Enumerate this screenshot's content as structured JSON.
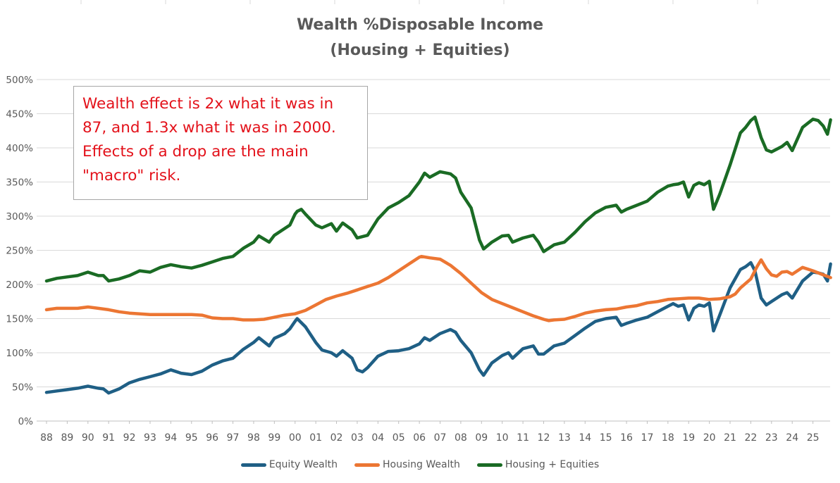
{
  "chart_data": {
    "type": "line",
    "title_line1": "Wealth %Disposable Income",
    "title_line2": "(Housing + Equities)",
    "annotation": [
      "Wealth effect is 2x what it was in",
      "87, and 1.3x what it was in 2000.",
      "Effects of a drop are the main",
      "\"macro\" risk."
    ],
    "xlabel": "",
    "ylabel": "",
    "ylim": [
      0,
      500
    ],
    "y_ticks": [
      "0%",
      "50%",
      "100%",
      "150%",
      "200%",
      "250%",
      "300%",
      "350%",
      "400%",
      "450%",
      "500%"
    ],
    "x_ticks": [
      "88",
      "89",
      "90",
      "91",
      "92",
      "93",
      "94",
      "95",
      "96",
      "97",
      "98",
      "99",
      "00",
      "01",
      "02",
      "03",
      "04",
      "05",
      "06",
      "07",
      "08",
      "09",
      "10",
      "11",
      "12",
      "13",
      "14",
      "15",
      "16",
      "17",
      "18",
      "19",
      "20",
      "21",
      "22",
      "23",
      "24",
      "25"
    ],
    "grid": true,
    "legend_position": "bottom",
    "colors": {
      "equity": "#1f5f85",
      "housing": "#ec7633",
      "total": "#1a6b24",
      "grid": "#d9d9d9",
      "annotation_text": "#e3111a"
    },
    "series": [
      {
        "name": "Equity Wealth",
        "color": "#1f5f85",
        "points": [
          [
            1988.0,
            42
          ],
          [
            1988.5,
            44
          ],
          [
            1989.0,
            46
          ],
          [
            1989.5,
            48
          ],
          [
            1990.0,
            51
          ],
          [
            1990.5,
            48
          ],
          [
            1990.75,
            47
          ],
          [
            1991.0,
            41
          ],
          [
            1991.5,
            47
          ],
          [
            1992.0,
            56
          ],
          [
            1992.5,
            61
          ],
          [
            1993.0,
            65
          ],
          [
            1993.5,
            69
          ],
          [
            1994.0,
            75
          ],
          [
            1994.5,
            70
          ],
          [
            1995.0,
            68
          ],
          [
            1995.5,
            73
          ],
          [
            1996.0,
            82
          ],
          [
            1996.5,
            88
          ],
          [
            1997.0,
            92
          ],
          [
            1997.5,
            105
          ],
          [
            1998.0,
            115
          ],
          [
            1998.25,
            122
          ],
          [
            1998.75,
            110
          ],
          [
            1999.0,
            121
          ],
          [
            1999.5,
            128
          ],
          [
            1999.75,
            135
          ],
          [
            2000.0,
            146
          ],
          [
            2000.1,
            150
          ],
          [
            2000.5,
            138
          ],
          [
            2001.0,
            115
          ],
          [
            2001.3,
            104
          ],
          [
            2001.75,
            100
          ],
          [
            2002.0,
            95
          ],
          [
            2002.3,
            103
          ],
          [
            2002.75,
            92
          ],
          [
            2003.0,
            75
          ],
          [
            2003.25,
            72
          ],
          [
            2003.5,
            78
          ],
          [
            2004.0,
            95
          ],
          [
            2004.5,
            102
          ],
          [
            2005.0,
            103
          ],
          [
            2005.5,
            106
          ],
          [
            2006.0,
            113
          ],
          [
            2006.25,
            122
          ],
          [
            2006.5,
            118
          ],
          [
            2007.0,
            128
          ],
          [
            2007.5,
            134
          ],
          [
            2007.75,
            130
          ],
          [
            2008.0,
            118
          ],
          [
            2008.5,
            100
          ],
          [
            2008.9,
            75
          ],
          [
            2009.1,
            67
          ],
          [
            2009.5,
            85
          ],
          [
            2010.0,
            96
          ],
          [
            2010.3,
            100
          ],
          [
            2010.5,
            92
          ],
          [
            2011.0,
            106
          ],
          [
            2011.5,
            110
          ],
          [
            2011.75,
            98
          ],
          [
            2012.0,
            98
          ],
          [
            2012.5,
            110
          ],
          [
            2013.0,
            114
          ],
          [
            2013.5,
            125
          ],
          [
            2014.0,
            136
          ],
          [
            2014.5,
            146
          ],
          [
            2015.0,
            150
          ],
          [
            2015.5,
            152
          ],
          [
            2015.75,
            140
          ],
          [
            2016.0,
            143
          ],
          [
            2016.5,
            148
          ],
          [
            2017.0,
            152
          ],
          [
            2017.5,
            160
          ],
          [
            2018.0,
            168
          ],
          [
            2018.25,
            172
          ],
          [
            2018.5,
            168
          ],
          [
            2018.75,
            170
          ],
          [
            2019.0,
            148
          ],
          [
            2019.25,
            165
          ],
          [
            2019.5,
            170
          ],
          [
            2019.75,
            168
          ],
          [
            2020.0,
            173
          ],
          [
            2020.2,
            132
          ],
          [
            2020.5,
            155
          ],
          [
            2021.0,
            195
          ],
          [
            2021.5,
            222
          ],
          [
            2021.75,
            226
          ],
          [
            2022.0,
            232
          ],
          [
            2022.2,
            220
          ],
          [
            2022.5,
            180
          ],
          [
            2022.75,
            170
          ],
          [
            2023.0,
            175
          ],
          [
            2023.5,
            185
          ],
          [
            2023.75,
            188
          ],
          [
            2024.0,
            180
          ],
          [
            2024.5,
            205
          ],
          [
            2025.0,
            218
          ],
          [
            2025.25,
            217
          ],
          [
            2025.5,
            215
          ],
          [
            2025.7,
            205
          ],
          [
            2025.85,
            230
          ]
        ]
      },
      {
        "name": "Housing Wealth",
        "color": "#ec7633",
        "points": [
          [
            1988.0,
            163
          ],
          [
            1988.5,
            165
          ],
          [
            1989.0,
            165
          ],
          [
            1989.5,
            165
          ],
          [
            1990.0,
            167
          ],
          [
            1990.5,
            165
          ],
          [
            1991.0,
            163
          ],
          [
            1991.5,
            160
          ],
          [
            1992.0,
            158
          ],
          [
            1992.5,
            157
          ],
          [
            1993.0,
            156
          ],
          [
            1993.5,
            156
          ],
          [
            1994.0,
            156
          ],
          [
            1994.5,
            156
          ],
          [
            1995.0,
            156
          ],
          [
            1995.5,
            155
          ],
          [
            1996.0,
            151
          ],
          [
            1996.5,
            150
          ],
          [
            1997.0,
            150
          ],
          [
            1997.5,
            148
          ],
          [
            1998.0,
            148
          ],
          [
            1998.5,
            149
          ],
          [
            1999.0,
            152
          ],
          [
            1999.5,
            155
          ],
          [
            2000.0,
            157
          ],
          [
            2000.5,
            162
          ],
          [
            2001.0,
            170
          ],
          [
            2001.5,
            178
          ],
          [
            2002.0,
            183
          ],
          [
            2002.5,
            187
          ],
          [
            2003.0,
            192
          ],
          [
            2003.5,
            197
          ],
          [
            2004.0,
            202
          ],
          [
            2004.5,
            210
          ],
          [
            2005.0,
            220
          ],
          [
            2005.5,
            230
          ],
          [
            2006.0,
            240
          ],
          [
            2006.1,
            241
          ],
          [
            2006.5,
            239
          ],
          [
            2007.0,
            237
          ],
          [
            2007.5,
            228
          ],
          [
            2008.0,
            216
          ],
          [
            2008.5,
            202
          ],
          [
            2009.0,
            188
          ],
          [
            2009.5,
            178
          ],
          [
            2010.0,
            172
          ],
          [
            2010.5,
            166
          ],
          [
            2011.0,
            160
          ],
          [
            2011.5,
            154
          ],
          [
            2012.0,
            149
          ],
          [
            2012.25,
            147
          ],
          [
            2012.5,
            148
          ],
          [
            2013.0,
            149
          ],
          [
            2013.5,
            153
          ],
          [
            2014.0,
            158
          ],
          [
            2014.5,
            161
          ],
          [
            2015.0,
            163
          ],
          [
            2015.5,
            164
          ],
          [
            2016.0,
            167
          ],
          [
            2016.5,
            169
          ],
          [
            2017.0,
            173
          ],
          [
            2017.5,
            175
          ],
          [
            2018.0,
            178
          ],
          [
            2018.5,
            179
          ],
          [
            2019.0,
            180
          ],
          [
            2019.5,
            180
          ],
          [
            2020.0,
            178
          ],
          [
            2020.5,
            179
          ],
          [
            2021.0,
            182
          ],
          [
            2021.25,
            186
          ],
          [
            2021.5,
            195
          ],
          [
            2022.0,
            208
          ],
          [
            2022.3,
            226
          ],
          [
            2022.5,
            236
          ],
          [
            2022.75,
            223
          ],
          [
            2023.0,
            214
          ],
          [
            2023.25,
            212
          ],
          [
            2023.5,
            218
          ],
          [
            2023.75,
            219
          ],
          [
            2024.0,
            215
          ],
          [
            2024.5,
            225
          ],
          [
            2025.0,
            220
          ],
          [
            2025.5,
            214
          ],
          [
            2025.85,
            210
          ]
        ]
      },
      {
        "name": "Housing + Equities",
        "color": "#1a6b24",
        "points": [
          [
            1988.0,
            205
          ],
          [
            1988.5,
            209
          ],
          [
            1989.0,
            211
          ],
          [
            1989.5,
            213
          ],
          [
            1990.0,
            218
          ],
          [
            1990.5,
            213
          ],
          [
            1990.75,
            213
          ],
          [
            1991.0,
            205
          ],
          [
            1991.5,
            208
          ],
          [
            1992.0,
            213
          ],
          [
            1992.5,
            220
          ],
          [
            1993.0,
            218
          ],
          [
            1993.5,
            225
          ],
          [
            1994.0,
            229
          ],
          [
            1994.5,
            226
          ],
          [
            1995.0,
            224
          ],
          [
            1995.5,
            228
          ],
          [
            1996.0,
            233
          ],
          [
            1996.5,
            238
          ],
          [
            1997.0,
            241
          ],
          [
            1997.5,
            253
          ],
          [
            1998.0,
            262
          ],
          [
            1998.25,
            271
          ],
          [
            1998.75,
            262
          ],
          [
            1999.0,
            272
          ],
          [
            1999.5,
            282
          ],
          [
            1999.75,
            287
          ],
          [
            2000.0,
            303
          ],
          [
            2000.1,
            307
          ],
          [
            2000.3,
            310
          ],
          [
            2000.5,
            303
          ],
          [
            2001.0,
            287
          ],
          [
            2001.3,
            283
          ],
          [
            2001.75,
            289
          ],
          [
            2002.0,
            278
          ],
          [
            2002.3,
            290
          ],
          [
            2002.75,
            280
          ],
          [
            2003.0,
            268
          ],
          [
            2003.25,
            270
          ],
          [
            2003.5,
            272
          ],
          [
            2004.0,
            296
          ],
          [
            2004.5,
            312
          ],
          [
            2005.0,
            320
          ],
          [
            2005.5,
            330
          ],
          [
            2006.0,
            350
          ],
          [
            2006.25,
            363
          ],
          [
            2006.5,
            357
          ],
          [
            2007.0,
            365
          ],
          [
            2007.5,
            362
          ],
          [
            2007.75,
            356
          ],
          [
            2008.0,
            335
          ],
          [
            2008.5,
            312
          ],
          [
            2008.9,
            265
          ],
          [
            2009.1,
            252
          ],
          [
            2009.5,
            262
          ],
          [
            2010.0,
            271
          ],
          [
            2010.3,
            272
          ],
          [
            2010.5,
            262
          ],
          [
            2011.0,
            268
          ],
          [
            2011.5,
            272
          ],
          [
            2011.75,
            262
          ],
          [
            2012.0,
            248
          ],
          [
            2012.5,
            258
          ],
          [
            2013.0,
            262
          ],
          [
            2013.5,
            276
          ],
          [
            2014.0,
            292
          ],
          [
            2014.5,
            305
          ],
          [
            2015.0,
            313
          ],
          [
            2015.5,
            316
          ],
          [
            2015.75,
            306
          ],
          [
            2016.0,
            310
          ],
          [
            2016.5,
            316
          ],
          [
            2017.0,
            322
          ],
          [
            2017.5,
            335
          ],
          [
            2018.0,
            344
          ],
          [
            2018.25,
            346
          ],
          [
            2018.5,
            347
          ],
          [
            2018.75,
            350
          ],
          [
            2019.0,
            328
          ],
          [
            2019.25,
            345
          ],
          [
            2019.5,
            349
          ],
          [
            2019.75,
            346
          ],
          [
            2020.0,
            351
          ],
          [
            2020.2,
            310
          ],
          [
            2020.5,
            332
          ],
          [
            2021.0,
            375
          ],
          [
            2021.5,
            422
          ],
          [
            2021.75,
            430
          ],
          [
            2022.0,
            440
          ],
          [
            2022.2,
            445
          ],
          [
            2022.5,
            415
          ],
          [
            2022.75,
            397
          ],
          [
            2023.0,
            394
          ],
          [
            2023.5,
            402
          ],
          [
            2023.75,
            408
          ],
          [
            2024.0,
            396
          ],
          [
            2024.5,
            430
          ],
          [
            2025.0,
            442
          ],
          [
            2025.25,
            440
          ],
          [
            2025.5,
            432
          ],
          [
            2025.7,
            420
          ],
          [
            2025.85,
            441
          ]
        ]
      }
    ]
  }
}
